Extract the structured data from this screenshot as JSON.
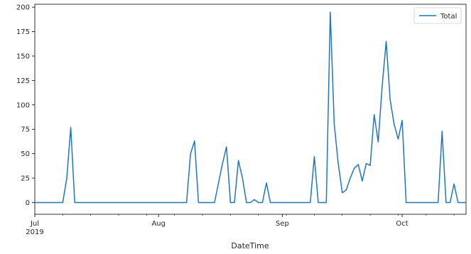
{
  "chart_data": {
    "type": "line",
    "title": "",
    "xlabel": "DateTime",
    "ylabel": "",
    "ylim": [
      -12,
      203
    ],
    "xlim": [
      "2019-07-01",
      "2019-10-17"
    ],
    "y_ticks": [
      0,
      25,
      50,
      75,
      100,
      125,
      150,
      175,
      200
    ],
    "x_ticks": [
      {
        "date": "2019-07-01",
        "label": "Jul",
        "sublabel": "2019"
      },
      {
        "date": "2019-08-01",
        "label": "Aug",
        "sublabel": ""
      },
      {
        "date": "2019-09-01",
        "label": "Sep",
        "sublabel": ""
      },
      {
        "date": "2019-10-01",
        "label": "Oct",
        "sublabel": ""
      }
    ],
    "grid": false,
    "legend": {
      "position": "top-right",
      "entries": [
        "Total"
      ]
    },
    "colors": {
      "series": "#1f77b4"
    },
    "series": [
      {
        "name": "Total",
        "points": [
          [
            "2019-07-01",
            0
          ],
          [
            "2019-07-08",
            0
          ],
          [
            "2019-07-09",
            25
          ],
          [
            "2019-07-10",
            77
          ],
          [
            "2019-07-11",
            0
          ],
          [
            "2019-07-31",
            0
          ],
          [
            "2019-08-08",
            0
          ],
          [
            "2019-08-09",
            50
          ],
          [
            "2019-08-10",
            63
          ],
          [
            "2019-08-11",
            0
          ],
          [
            "2019-08-15",
            0
          ],
          [
            "2019-08-17",
            40
          ],
          [
            "2019-08-18",
            57
          ],
          [
            "2019-08-19",
            0
          ],
          [
            "2019-08-20",
            0
          ],
          [
            "2019-08-21",
            43
          ],
          [
            "2019-08-22",
            25
          ],
          [
            "2019-08-23",
            0
          ],
          [
            "2019-08-24",
            0
          ],
          [
            "2019-08-25",
            3
          ],
          [
            "2019-08-26",
            0
          ],
          [
            "2019-08-27",
            0
          ],
          [
            "2019-08-28",
            20
          ],
          [
            "2019-08-29",
            0
          ],
          [
            "2019-09-08",
            0
          ],
          [
            "2019-09-09",
            47
          ],
          [
            "2019-09-10",
            0
          ],
          [
            "2019-09-12",
            0
          ],
          [
            "2019-09-13",
            195
          ],
          [
            "2019-09-14",
            80
          ],
          [
            "2019-09-15",
            40
          ],
          [
            "2019-09-16",
            10
          ],
          [
            "2019-09-17",
            13
          ],
          [
            "2019-09-18",
            25
          ],
          [
            "2019-09-19",
            35
          ],
          [
            "2019-09-20",
            39
          ],
          [
            "2019-09-21",
            22
          ],
          [
            "2019-09-22",
            40
          ],
          [
            "2019-09-23",
            38
          ],
          [
            "2019-09-24",
            90
          ],
          [
            "2019-09-25",
            62
          ],
          [
            "2019-09-26",
            120
          ],
          [
            "2019-09-27",
            165
          ],
          [
            "2019-09-28",
            105
          ],
          [
            "2019-09-29",
            80
          ],
          [
            "2019-09-30",
            65
          ],
          [
            "2019-10-01",
            84
          ],
          [
            "2019-10-02",
            0
          ],
          [
            "2019-10-10",
            0
          ],
          [
            "2019-10-11",
            73
          ],
          [
            "2019-10-12",
            0
          ],
          [
            "2019-10-13",
            0
          ],
          [
            "2019-10-14",
            19
          ],
          [
            "2019-10-15",
            0
          ],
          [
            "2019-10-17",
            0
          ]
        ]
      }
    ]
  }
}
